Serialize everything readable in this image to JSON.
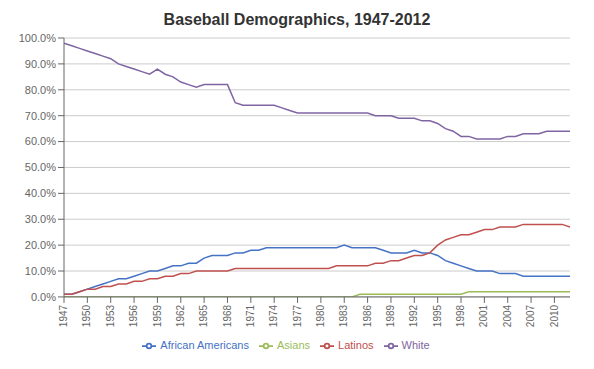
{
  "chart_data": {
    "type": "line",
    "title": "Baseball Demographics, 1947-2012",
    "x": [
      1947,
      1948,
      1949,
      1950,
      1951,
      1952,
      1953,
      1954,
      1955,
      1956,
      1957,
      1958,
      1959,
      1960,
      1961,
      1962,
      1963,
      1964,
      1965,
      1966,
      1967,
      1968,
      1969,
      1970,
      1971,
      1972,
      1973,
      1974,
      1975,
      1976,
      1977,
      1978,
      1979,
      1980,
      1981,
      1982,
      1983,
      1984,
      1985,
      1986,
      1987,
      1988,
      1989,
      1990,
      1991,
      1992,
      1993,
      1994,
      1995,
      1996,
      1997,
      1998,
      1999,
      2000,
      2001,
      2002,
      2003,
      2004,
      2005,
      2006,
      2007,
      2008,
      2009,
      2010,
      2011,
      2012
    ],
    "series": [
      {
        "name": "African Americans",
        "color": "#4472C4",
        "values": [
          0.01,
          0.01,
          0.02,
          0.03,
          0.04,
          0.05,
          0.06,
          0.07,
          0.07,
          0.08,
          0.09,
          0.1,
          0.1,
          0.11,
          0.12,
          0.12,
          0.13,
          0.13,
          0.15,
          0.16,
          0.16,
          0.16,
          0.17,
          0.17,
          0.18,
          0.18,
          0.19,
          0.19,
          0.19,
          0.19,
          0.19,
          0.19,
          0.19,
          0.19,
          0.19,
          0.19,
          0.2,
          0.19,
          0.19,
          0.19,
          0.19,
          0.18,
          0.17,
          0.17,
          0.17,
          0.18,
          0.17,
          0.17,
          0.16,
          0.14,
          0.13,
          0.12,
          0.11,
          0.1,
          0.1,
          0.1,
          0.09,
          0.09,
          0.09,
          0.08,
          0.08,
          0.08,
          0.08,
          0.08,
          0.08,
          0.08
        ]
      },
      {
        "name": "Latinos",
        "color": "#C0504D",
        "values": [
          0.01,
          0.01,
          0.02,
          0.03,
          0.03,
          0.04,
          0.04,
          0.05,
          0.05,
          0.06,
          0.06,
          0.07,
          0.07,
          0.08,
          0.08,
          0.09,
          0.09,
          0.1,
          0.1,
          0.1,
          0.1,
          0.1,
          0.11,
          0.11,
          0.11,
          0.11,
          0.11,
          0.11,
          0.11,
          0.11,
          0.11,
          0.11,
          0.11,
          0.11,
          0.11,
          0.12,
          0.12,
          0.12,
          0.12,
          0.12,
          0.13,
          0.13,
          0.14,
          0.14,
          0.15,
          0.16,
          0.16,
          0.17,
          0.2,
          0.22,
          0.23,
          0.24,
          0.24,
          0.25,
          0.26,
          0.26,
          0.27,
          0.27,
          0.27,
          0.28,
          0.28,
          0.28,
          0.28,
          0.28,
          0.28,
          0.27
        ]
      },
      {
        "name": "Asians",
        "color": "#9BBB59",
        "values": [
          0.0,
          0.0,
          0.0,
          0.0,
          0.0,
          0.0,
          0.0,
          0.0,
          0.0,
          0.0,
          0.0,
          0.0,
          0.0,
          0.0,
          0.0,
          0.0,
          0.0,
          0.0,
          0.0,
          0.0,
          0.0,
          0.0,
          0.0,
          0.0,
          0.0,
          0.0,
          0.0,
          0.0,
          0.0,
          0.0,
          0.0,
          0.0,
          0.0,
          0.0,
          0.0,
          0.0,
          0.0,
          0.0,
          0.01,
          0.01,
          0.01,
          0.01,
          0.01,
          0.01,
          0.01,
          0.01,
          0.01,
          0.01,
          0.01,
          0.01,
          0.01,
          0.01,
          0.02,
          0.02,
          0.02,
          0.02,
          0.02,
          0.02,
          0.02,
          0.02,
          0.02,
          0.02,
          0.02,
          0.02,
          0.02,
          0.02
        ]
      },
      {
        "name": "White",
        "color": "#8064A2",
        "values": [
          0.98,
          0.97,
          0.96,
          0.95,
          0.94,
          0.93,
          0.92,
          0.9,
          0.89,
          0.88,
          0.87,
          0.86,
          0.88,
          0.86,
          0.85,
          0.83,
          0.82,
          0.81,
          0.82,
          0.82,
          0.82,
          0.82,
          0.75,
          0.74,
          0.74,
          0.74,
          0.74,
          0.74,
          0.73,
          0.72,
          0.71,
          0.71,
          0.71,
          0.71,
          0.71,
          0.71,
          0.71,
          0.71,
          0.71,
          0.71,
          0.7,
          0.7,
          0.7,
          0.69,
          0.69,
          0.69,
          0.68,
          0.68,
          0.67,
          0.65,
          0.64,
          0.62,
          0.62,
          0.61,
          0.61,
          0.61,
          0.61,
          0.62,
          0.62,
          0.63,
          0.63,
          0.63,
          0.64,
          0.64,
          0.64,
          0.64
        ]
      }
    ],
    "xlim": [
      1947,
      2012
    ],
    "xticks": [
      1947,
      1950,
      1953,
      1956,
      1959,
      1962,
      1965,
      1968,
      1971,
      1974,
      1977,
      1980,
      1983,
      1986,
      1989,
      1992,
      1995,
      1998,
      2001,
      2004,
      2007,
      2010
    ],
    "ylim": [
      0,
      1.0
    ],
    "yticks": [
      {
        "value": 0.0,
        "label": "0.0%"
      },
      {
        "value": 0.1,
        "label": "10.0%"
      },
      {
        "value": 0.2,
        "label": "20.0%"
      },
      {
        "value": 0.3,
        "label": "30.0%"
      },
      {
        "value": 0.4,
        "label": "40.0%"
      },
      {
        "value": 0.5,
        "label": "50.0%"
      },
      {
        "value": 0.6,
        "label": "60.0%"
      },
      {
        "value": 0.7,
        "label": "70.0%"
      },
      {
        "value": 0.8,
        "label": "80.0%"
      },
      {
        "value": 0.9,
        "label": "90.0%"
      },
      {
        "value": 1.0,
        "label": "100.0%"
      }
    ],
    "grid": true,
    "legend": "bottom"
  }
}
